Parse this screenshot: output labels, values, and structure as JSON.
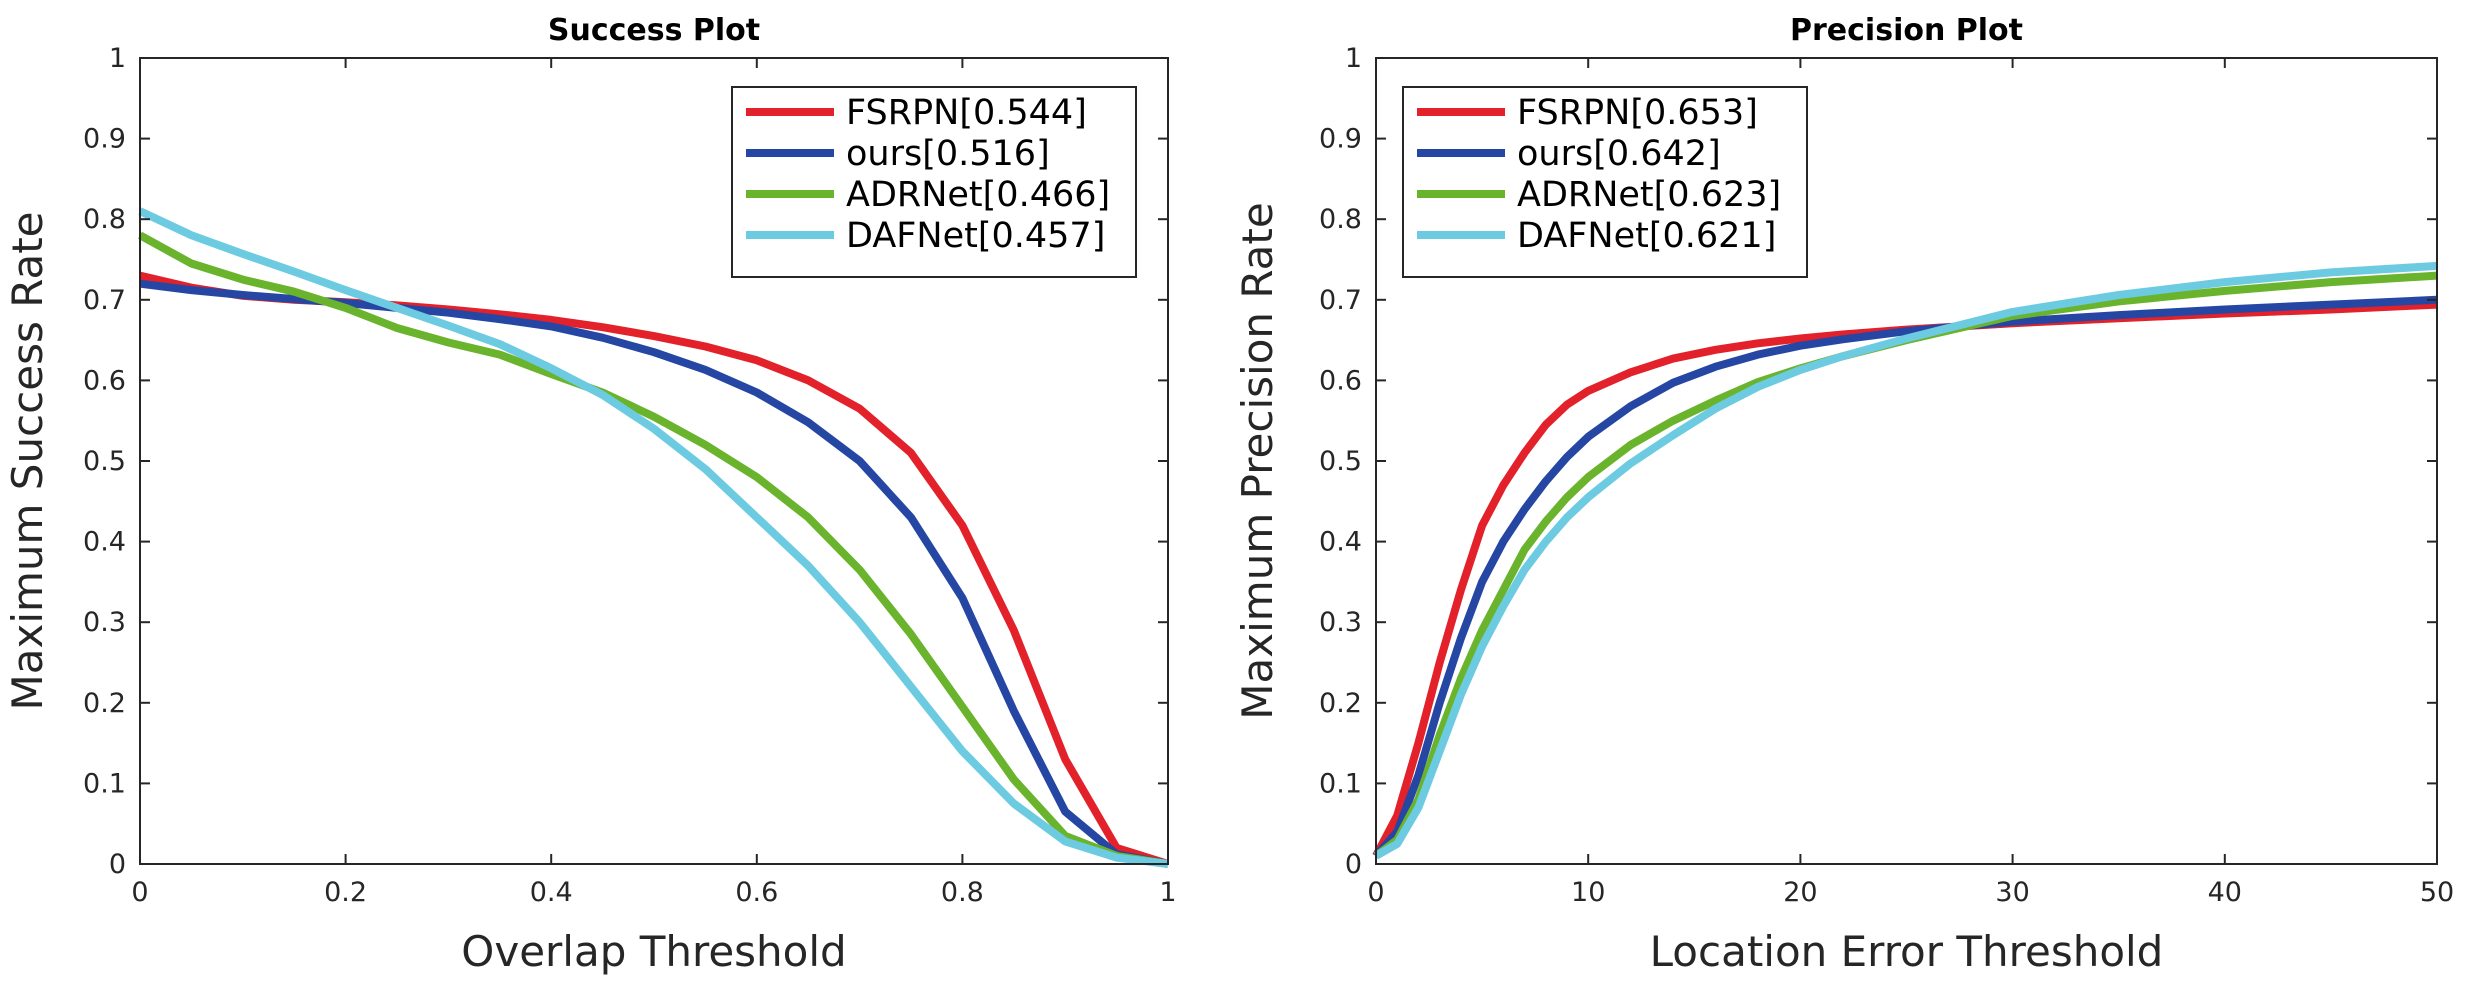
{
  "chart_data": [
    {
      "type": "line",
      "title": "Success Plot",
      "xlabel": "Overlap Threshold",
      "ylabel": "Maximum Success Rate",
      "xlim": [
        0,
        1
      ],
      "ylim": [
        0,
        1
      ],
      "xticks": [
        0,
        0.2,
        0.4,
        0.6,
        0.8,
        1
      ],
      "xtick_labels": [
        "0",
        "0.2",
        "0.4",
        "0.6",
        "0.8",
        "1"
      ],
      "yticks": [
        0,
        0.1,
        0.2,
        0.3,
        0.4,
        0.5,
        0.6,
        0.7,
        0.8,
        0.9,
        1
      ],
      "ytick_labels": [
        "0",
        "0.1",
        "0.2",
        "0.3",
        "0.4",
        "0.5",
        "0.6",
        "0.7",
        "0.8",
        "0.9",
        "1"
      ],
      "grid": false,
      "legend_position": "top-right",
      "x": [
        0,
        0.05,
        0.1,
        0.15,
        0.2,
        0.25,
        0.3,
        0.35,
        0.4,
        0.45,
        0.5,
        0.55,
        0.6,
        0.65,
        0.7,
        0.75,
        0.8,
        0.85,
        0.9,
        0.95,
        1
      ],
      "series": [
        {
          "name": "FSRPN",
          "legend_label": "FSRPN[0.544]",
          "score": 0.544,
          "color": "#e3212a",
          "values": [
            0.73,
            0.715,
            0.705,
            0.7,
            0.697,
            0.693,
            0.688,
            0.682,
            0.675,
            0.666,
            0.655,
            0.642,
            0.625,
            0.6,
            0.565,
            0.51,
            0.42,
            0.29,
            0.13,
            0.02,
            0.0
          ]
        },
        {
          "name": "ours",
          "legend_label": "ours[0.516]",
          "score": 0.516,
          "color": "#2547a3",
          "values": [
            0.72,
            0.712,
            0.706,
            0.701,
            0.696,
            0.69,
            0.684,
            0.676,
            0.667,
            0.653,
            0.635,
            0.613,
            0.585,
            0.548,
            0.5,
            0.43,
            0.33,
            0.19,
            0.065,
            0.012,
            0.0
          ]
        },
        {
          "name": "ADRNet",
          "legend_label": "ADRNet[0.466]",
          "score": 0.466,
          "color": "#6ab42d",
          "values": [
            0.78,
            0.745,
            0.725,
            0.71,
            0.69,
            0.665,
            0.647,
            0.632,
            0.608,
            0.585,
            0.555,
            0.52,
            0.48,
            0.43,
            0.365,
            0.285,
            0.195,
            0.105,
            0.035,
            0.01,
            0.0
          ]
        },
        {
          "name": "DAFNet",
          "legend_label": "DAFNet[0.457]",
          "score": 0.457,
          "color": "#6ccbe0",
          "values": [
            0.81,
            0.78,
            0.757,
            0.735,
            0.712,
            0.69,
            0.668,
            0.645,
            0.615,
            0.582,
            0.54,
            0.49,
            0.43,
            0.37,
            0.3,
            0.22,
            0.14,
            0.075,
            0.028,
            0.008,
            0.0
          ]
        }
      ]
    },
    {
      "type": "line",
      "title": "Precision Plot",
      "xlabel": "Location Error Threshold",
      "ylabel": "Maximum Precision Rate",
      "xlim": [
        0,
        50
      ],
      "ylim": [
        0,
        1
      ],
      "xticks": [
        0,
        10,
        20,
        30,
        40,
        50
      ],
      "xtick_labels": [
        "0",
        "10",
        "20",
        "30",
        "40",
        "50"
      ],
      "yticks": [
        0,
        0.1,
        0.2,
        0.3,
        0.4,
        0.5,
        0.6,
        0.7,
        0.8,
        0.9,
        1
      ],
      "ytick_labels": [
        "0",
        "0.1",
        "0.2",
        "0.3",
        "0.4",
        "0.5",
        "0.6",
        "0.7",
        "0.8",
        "0.9",
        "1"
      ],
      "grid": false,
      "legend_position": "top-left",
      "x": [
        0,
        1,
        2,
        3,
        4,
        5,
        6,
        7,
        8,
        9,
        10,
        12,
        14,
        16,
        18,
        20,
        22,
        25,
        30,
        35,
        40,
        45,
        50
      ],
      "series": [
        {
          "name": "FSRPN",
          "legend_label": "FSRPN[0.653]",
          "score": 0.653,
          "color": "#e3212a",
          "values": [
            0.01,
            0.06,
            0.15,
            0.25,
            0.34,
            0.42,
            0.47,
            0.51,
            0.545,
            0.57,
            0.587,
            0.61,
            0.627,
            0.638,
            0.646,
            0.652,
            0.657,
            0.663,
            0.671,
            0.677,
            0.683,
            0.688,
            0.694
          ]
        },
        {
          "name": "ours",
          "legend_label": "ours[0.642]",
          "score": 0.642,
          "color": "#2547a3",
          "values": [
            0.01,
            0.04,
            0.11,
            0.2,
            0.28,
            0.35,
            0.4,
            0.44,
            0.475,
            0.505,
            0.53,
            0.568,
            0.597,
            0.617,
            0.632,
            0.643,
            0.651,
            0.661,
            0.673,
            0.681,
            0.688,
            0.694,
            0.7
          ]
        },
        {
          "name": "ADRNet",
          "legend_label": "ADRNet[0.623]",
          "score": 0.623,
          "color": "#6ab42d",
          "values": [
            0.01,
            0.03,
            0.08,
            0.16,
            0.23,
            0.29,
            0.34,
            0.39,
            0.425,
            0.455,
            0.48,
            0.52,
            0.55,
            0.575,
            0.598,
            0.615,
            0.63,
            0.65,
            0.68,
            0.698,
            0.711,
            0.722,
            0.73
          ]
        },
        {
          "name": "DAFNet",
          "legend_label": "DAFNet[0.621]",
          "score": 0.621,
          "color": "#6ccbe0",
          "values": [
            0.01,
            0.025,
            0.07,
            0.14,
            0.21,
            0.27,
            0.32,
            0.365,
            0.4,
            0.43,
            0.455,
            0.497,
            0.532,
            0.565,
            0.592,
            0.613,
            0.63,
            0.652,
            0.685,
            0.706,
            0.722,
            0.734,
            0.742
          ]
        }
      ]
    }
  ]
}
